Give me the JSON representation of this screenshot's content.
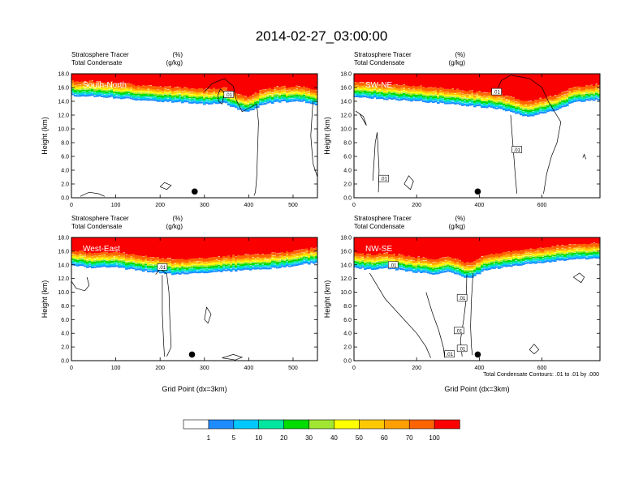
{
  "figure": {
    "title": "2014-02-27_03:00:00",
    "footnote": "Total Condensate Contours: .01 to .01 by .000"
  },
  "colors": {
    "levels": [
      "#ffffff",
      "#1e8cff",
      "#00c8ff",
      "#00e6a0",
      "#00dc00",
      "#a0e632",
      "#ffff00",
      "#ffc800",
      "#ffa000",
      "#ff6400",
      "#fa0000"
    ],
    "contour": "#000000",
    "marker": "#000000"
  },
  "colorbar": {
    "labels": [
      "1",
      "5",
      "10",
      "20",
      "30",
      "40",
      "50",
      "60",
      "70",
      "100"
    ]
  },
  "chart_data": [
    {
      "type": "heatmap",
      "panel": "South-North",
      "label": "South-North",
      "left_title": "Stratosphere Tracer",
      "left_title_2": "Total Condensate",
      "right_title": "(%)",
      "right_title_2": "(g/kg)",
      "ylabel": "Height (km)",
      "xlabel": "",
      "xlim": [
        0,
        555
      ],
      "ylim": [
        0,
        18
      ],
      "xticks": [
        "0",
        "100",
        "200",
        "300",
        "400",
        "500"
      ],
      "yticks": [
        "0.0",
        "2.0",
        "4.0",
        "6.0",
        "8.0",
        "10.0",
        "12.0",
        "14.0",
        "16.0",
        "18.0"
      ],
      "marker_x": 278,
      "contour_labels": [
        ".01"
      ],
      "tracer_base_km": [
        [
          0,
          14.8
        ],
        [
          60,
          14.7
        ],
        [
          100,
          14.5
        ],
        [
          150,
          14.2
        ],
        [
          200,
          14.0
        ],
        [
          250,
          13.8
        ],
        [
          300,
          13.6
        ],
        [
          345,
          13.8
        ],
        [
          375,
          12.8
        ],
        [
          400,
          12.5
        ],
        [
          430,
          13.5
        ],
        [
          470,
          13.9
        ],
        [
          520,
          14.0
        ],
        [
          555,
          13.3
        ]
      ]
    },
    {
      "type": "heatmap",
      "panel": "SW-NE",
      "label": "SW-NE",
      "left_title": "Stratosphere Tracer",
      "left_title_2": "Total Condensate",
      "right_title": "(%)",
      "right_title_2": "(g/kg)",
      "ylabel": "Height (km)",
      "xlabel": "",
      "xlim": [
        0,
        785
      ],
      "ylim": [
        0,
        18
      ],
      "xticks": [
        "0",
        "200",
        "400",
        "600"
      ],
      "yticks": [
        "0.0",
        "2.0",
        "4.0",
        "6.0",
        "8.0",
        "10.0",
        "12.0",
        "14.0",
        "16.0",
        "18.0"
      ],
      "marker_x": 395,
      "contour_labels": [
        ".01",
        ".01",
        ".01"
      ],
      "tracer_base_km": [
        [
          0,
          14.7
        ],
        [
          100,
          14.3
        ],
        [
          200,
          14.0
        ],
        [
          300,
          13.6
        ],
        [
          400,
          13.2
        ],
        [
          450,
          13.0
        ],
        [
          500,
          12.5
        ],
        [
          540,
          11.8
        ],
        [
          580,
          12.0
        ],
        [
          640,
          12.6
        ],
        [
          700,
          13.8
        ],
        [
          785,
          14.2
        ]
      ]
    },
    {
      "type": "heatmap",
      "panel": "West-East",
      "label": "West-East",
      "left_title": "Stratosphere Tracer",
      "left_title_2": "Total Condensate",
      "right_title": "(%)",
      "right_title_2": "(g/kg)",
      "ylabel": "Height (km)",
      "xlabel": "Grid Point (dx=3km)",
      "xlim": [
        0,
        555
      ],
      "ylim": [
        0,
        18
      ],
      "xticks": [
        "0",
        "100",
        "200",
        "300",
        "400",
        "500"
      ],
      "yticks": [
        "0.0",
        "2.0",
        "4.0",
        "6.0",
        "8.0",
        "10.0",
        "12.0",
        "14.0",
        "16.0",
        "18.0"
      ],
      "marker_x": 272,
      "contour_labels": [
        ".01"
      ],
      "tracer_base_km": [
        [
          0,
          14.0
        ],
        [
          40,
          13.6
        ],
        [
          100,
          13.6
        ],
        [
          150,
          13.2
        ],
        [
          190,
          12.9
        ],
        [
          230,
          12.6
        ],
        [
          270,
          12.7
        ],
        [
          330,
          13.0
        ],
        [
          400,
          13.2
        ],
        [
          470,
          13.6
        ],
        [
          555,
          14.3
        ]
      ]
    },
    {
      "type": "heatmap",
      "panel": "NW-SE",
      "label": "NW-SE",
      "left_title": "Stratosphere Tracer",
      "left_title_2": "Total Condensate",
      "right_title": "(%)",
      "right_title_2": "(g/kg)",
      "ylabel": "Height (km)",
      "xlabel": "Grid Point (dx=3km)",
      "xlim": [
        0,
        785
      ],
      "ylim": [
        0,
        18
      ],
      "xticks": [
        "0",
        "200",
        "400",
        "600"
      ],
      "yticks": [
        "0.0",
        "2.0",
        "4.0",
        "6.0",
        "8.0",
        "10.0",
        "12.0",
        "14.0",
        "16.0",
        "18.0"
      ],
      "marker_x": 395,
      "contour_labels": [
        ".01",
        ".01",
        ".01",
        ".01",
        ".01"
      ],
      "tracer_base_km": [
        [
          0,
          13.6
        ],
        [
          50,
          13.3
        ],
        [
          100,
          13.5
        ],
        [
          150,
          13.2
        ],
        [
          200,
          12.9
        ],
        [
          260,
          12.6
        ],
        [
          300,
          12.9
        ],
        [
          340,
          12.4
        ],
        [
          370,
          12.0
        ],
        [
          420,
          13.2
        ],
        [
          500,
          13.8
        ],
        [
          600,
          14.3
        ],
        [
          700,
          14.8
        ],
        [
          785,
          15.0
        ]
      ]
    }
  ]
}
